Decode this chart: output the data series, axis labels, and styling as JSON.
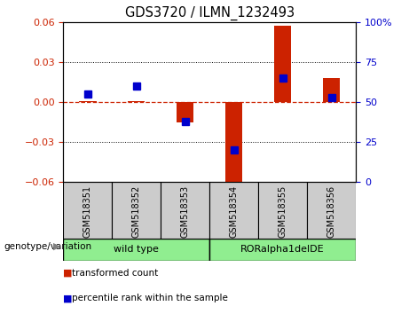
{
  "title": "GDS3720 / ILMN_1232493",
  "samples": [
    "GSM518351",
    "GSM518352",
    "GSM518353",
    "GSM518354",
    "GSM518355",
    "GSM518356"
  ],
  "red_values": [
    0.001,
    0.001,
    -0.015,
    -0.063,
    0.057,
    0.018
  ],
  "blue_values_pct": [
    55,
    60,
    38,
    20,
    65,
    53
  ],
  "ylim_left": [
    -0.06,
    0.06
  ],
  "ylim_right": [
    0,
    100
  ],
  "yticks_left": [
    -0.06,
    -0.03,
    0,
    0.03,
    0.06
  ],
  "yticks_right": [
    0,
    25,
    50,
    75,
    100
  ],
  "group_label": "genotype/variation",
  "group1_label": "wild type",
  "group2_label": "RORalpha1delDE",
  "legend_red": "transformed count",
  "legend_blue": "percentile rank within the sample",
  "bar_width": 0.35,
  "blue_marker_size": 6,
  "background_color": "#ffffff",
  "plot_bg": "#ffffff",
  "red_color": "#cc2200",
  "blue_color": "#0000cc",
  "zero_line_color": "#cc2200",
  "tick_color_left": "#cc2200",
  "tick_color_right": "#0000cc",
  "xlabelbox_color": "#cccccc",
  "green_color": "#90EE90",
  "green_dark_color": "#44cc44"
}
